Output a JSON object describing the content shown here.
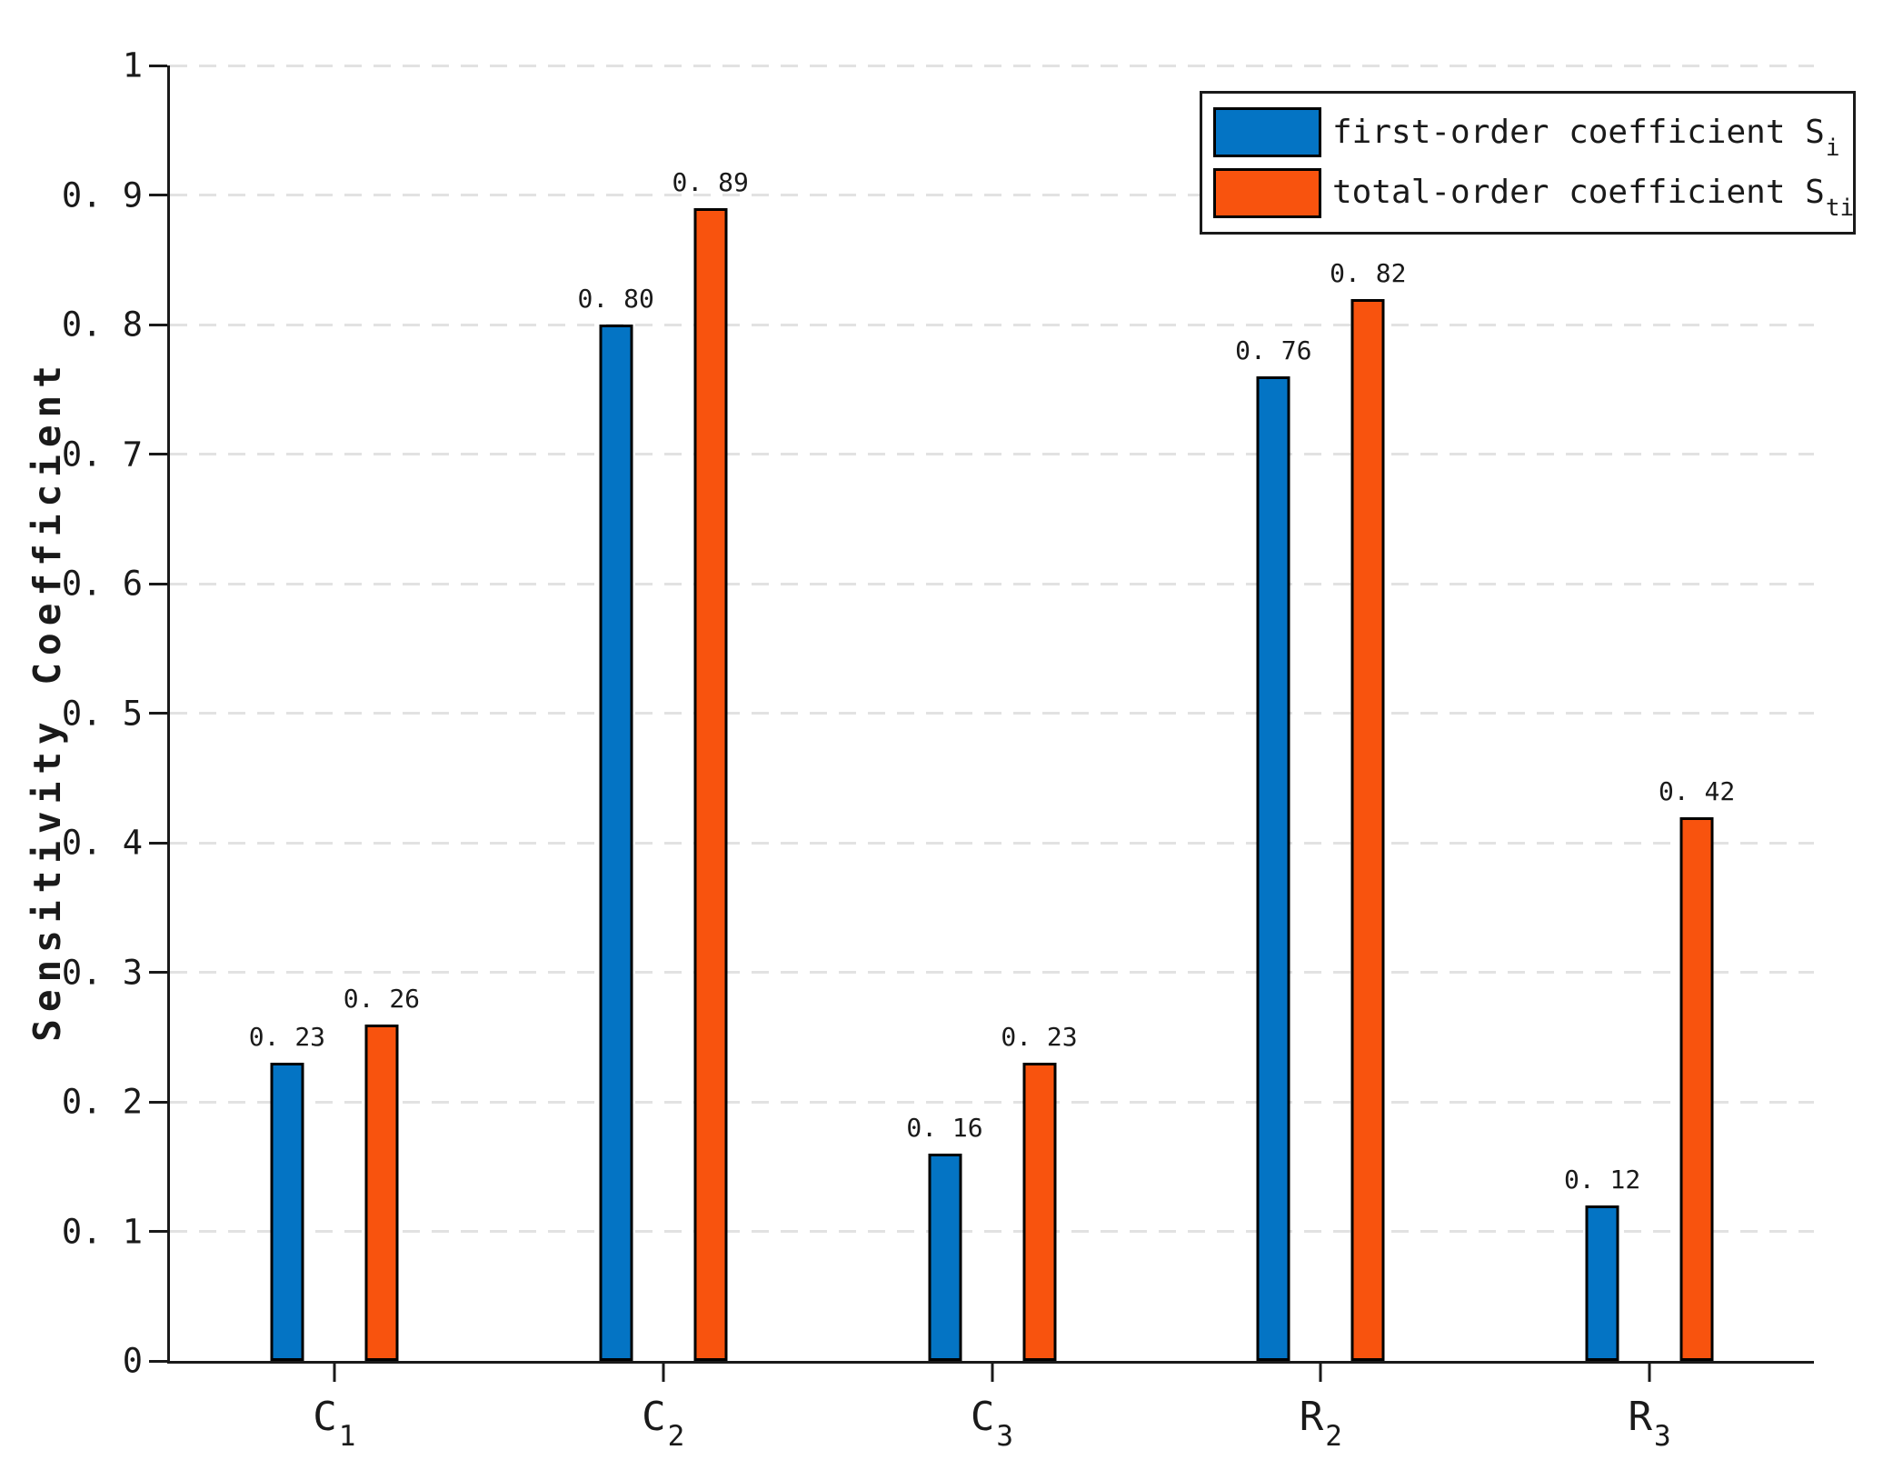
{
  "figure": {
    "ylabel": "Sensitivity Coefficient",
    "colors": {
      "first_order_blue": "#0474C4",
      "total_order_orange": "#F8530E",
      "axis": "#1a1a1a",
      "grid": "#e2e2e2",
      "bar_edge": "#000000",
      "background": "#ffffff"
    }
  },
  "legend": {
    "position": "upper-right",
    "items": [
      {
        "label": "first-order coefficient S",
        "subscript": "i",
        "color": "#0474C4"
      },
      {
        "label": "total-order coefficient S",
        "subscript": "ti",
        "color": "#F8530E"
      }
    ]
  },
  "chart_data": {
    "type": "bar",
    "title": "",
    "xlabel": "",
    "ylabel": "Sensitivity Coefficient",
    "ylim": [
      0,
      1
    ],
    "grid": "horizontal dashed at every 0.1",
    "legend_position": "upper-right",
    "categories": [
      {
        "base": "C",
        "sub": "1"
      },
      {
        "base": "C",
        "sub": "2"
      },
      {
        "base": "C",
        "sub": "3"
      },
      {
        "base": "R",
        "sub": "2"
      },
      {
        "base": "R",
        "sub": "3"
      }
    ],
    "y_ticks": [
      {
        "value": 0,
        "label": "0"
      },
      {
        "value": 0.1,
        "label": "0. 1"
      },
      {
        "value": 0.2,
        "label": "0. 2"
      },
      {
        "value": 0.3,
        "label": "0. 3"
      },
      {
        "value": 0.4,
        "label": "0. 4"
      },
      {
        "value": 0.5,
        "label": "0. 5"
      },
      {
        "value": 0.6,
        "label": "0. 6"
      },
      {
        "value": 0.7,
        "label": "0. 7"
      },
      {
        "value": 0.8,
        "label": "0. 8"
      },
      {
        "value": 0.9,
        "label": "0. 9"
      },
      {
        "value": 1,
        "label": "1"
      }
    ],
    "series": [
      {
        "name": "first-order coefficient S_i",
        "color": "#0474C4",
        "values": [
          0.23,
          0.8,
          0.16,
          0.76,
          0.12
        ],
        "value_labels": [
          "0. 23",
          "0. 80",
          "0. 16",
          "0. 76",
          "0. 12"
        ]
      },
      {
        "name": "total-order coefficient S_ti",
        "color": "#F8530E",
        "values": [
          0.26,
          0.89,
          0.23,
          0.82,
          0.42
        ],
        "value_labels": [
          "0. 26",
          "0. 89",
          "0. 23",
          "0. 82",
          "0. 42"
        ]
      }
    ]
  }
}
